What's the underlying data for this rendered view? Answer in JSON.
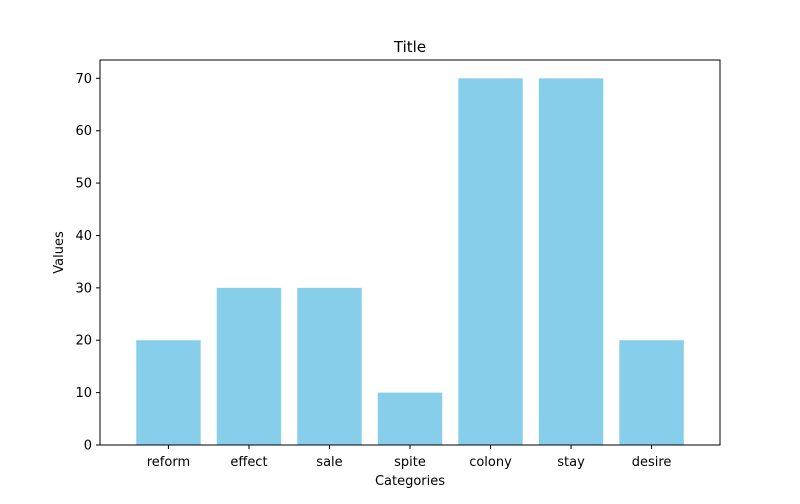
{
  "chart_data": {
    "type": "bar",
    "title": "Title",
    "xlabel": "Categories",
    "ylabel": "Values",
    "categories": [
      "reform",
      "effect",
      "sale",
      "spite",
      "colony",
      "stay",
      "desire"
    ],
    "values": [
      20,
      30,
      30,
      10,
      70,
      70,
      20
    ],
    "ylim": [
      0,
      73.5
    ],
    "yticks": [
      0,
      10,
      20,
      30,
      40,
      50,
      60,
      70
    ],
    "bar_color": "#87ceeb",
    "grid": false,
    "legend": "none"
  }
}
